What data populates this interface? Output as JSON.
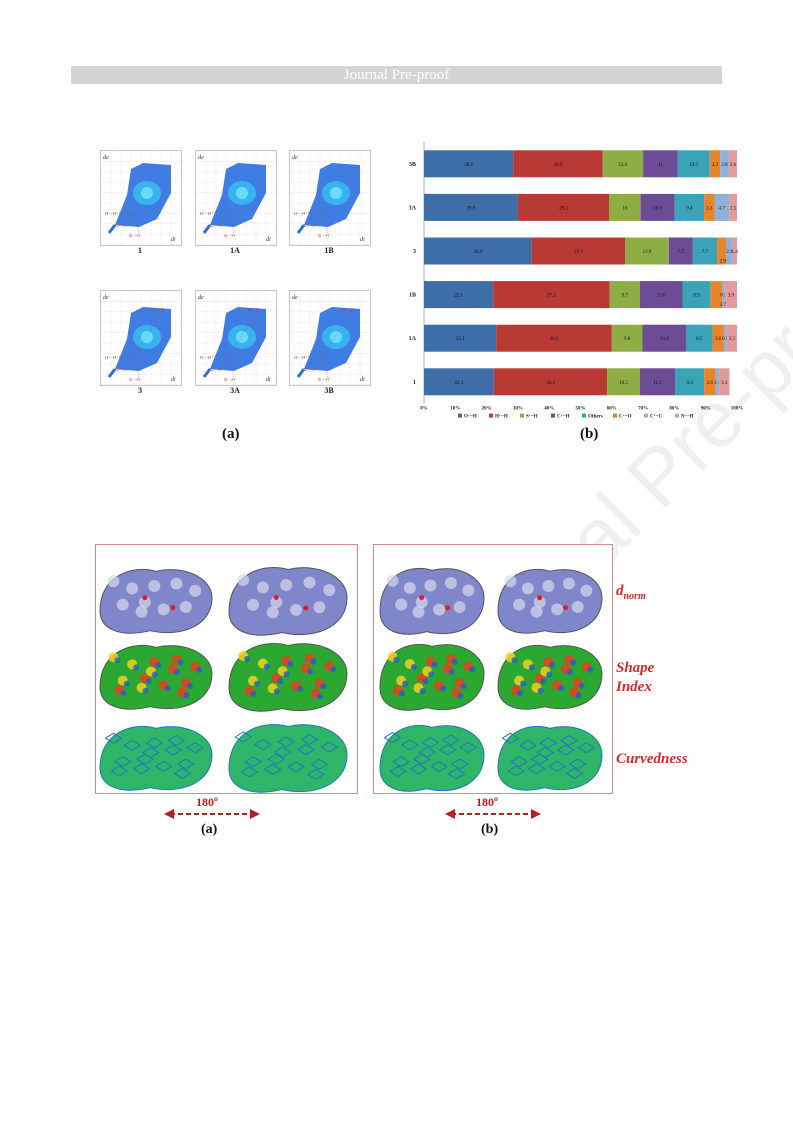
{
  "header": {
    "banner_text": "Journal Pre-proof"
  },
  "watermark": "Journal Pre-proof",
  "figure_top": {
    "fingerprints": [
      {
        "label": "1",
        "contacts": [
          "H···H",
          "O···H",
          "S···H"
        ]
      },
      {
        "label": "1A",
        "contacts": [
          "H···H",
          "O···H",
          "S···H"
        ]
      },
      {
        "label": "1B",
        "contacts": [
          "H···H",
          "O···H",
          "S···H"
        ]
      },
      {
        "label": "3",
        "contacts": [
          "H···H",
          "O···H",
          "S···H",
          "N···H"
        ]
      },
      {
        "label": "3A",
        "contacts": [
          "H···H",
          "O···H",
          "S···H",
          "N···H"
        ]
      },
      {
        "label": "3B",
        "contacts": [
          "H···H",
          "O···H",
          "S···H",
          "N···H"
        ]
      }
    ],
    "axis_x": "di",
    "axis_y": "de",
    "sublabel_a": "(a)",
    "sublabel_b": "(b)"
  },
  "chart_data": {
    "type": "bar",
    "orientation": "horizontal-stacked-percent",
    "categories": [
      "3B",
      "3A",
      "3",
      "1B",
      "1A",
      "1"
    ],
    "xlim": [
      0,
      100
    ],
    "ticks": [
      "0%",
      "10%",
      "20%",
      "30%",
      "40%",
      "50%",
      "60%",
      "70%",
      "80%",
      "90%",
      "100%"
    ],
    "series": [
      {
        "name": "O···H",
        "color": "#3d6ea8",
        "values": [
          28.5,
          29.9,
          34.4,
          22.1,
          23.1,
          22.3
        ]
      },
      {
        "name": "H···H",
        "color": "#b93a35",
        "values": [
          28.6,
          29.3,
          29.9,
          37.2,
          36.9,
          36.2
        ]
      },
      {
        "name": "S···H",
        "color": "#8fad45",
        "values": [
          12.9,
          10,
          13.9,
          9.7,
          9.8,
          10.5
        ]
      },
      {
        "name": "C···H",
        "color": "#6c4c95",
        "values": [
          11,
          10.9,
          7.7,
          13.6,
          13.9,
          11.2
        ]
      },
      {
        "name": "Others",
        "color": "#3aa3b8",
        "values": [
          10.3,
          9.4,
          7.7,
          8.9,
          8.5,
          9.3
        ]
      },
      {
        "name": "C···O",
        "color": "#e8842a",
        "values": [
          3.3,
          3.3,
          2.9,
          3.7,
          3.6,
          3.6
        ]
      },
      {
        "name": "C···C",
        "color": "#8fb0d8",
        "values": [
          2.8,
          4.7,
          2.1,
          0.9,
          0.9,
          1.1
        ]
      },
      {
        "name": "N···H",
        "color": "#e29a9a",
        "values": [
          2.6,
          2.5,
          1.4,
          3.9,
          3.3,
          3.4
        ]
      }
    ],
    "data_labels": [
      [
        "28.5",
        "28.6",
        "12.9",
        "11",
        "10.3",
        "3.3",
        "2.8",
        "2.6"
      ],
      [
        "29.9",
        "29.3",
        "10",
        "10.9",
        "9.4",
        "3.3",
        "4.7",
        "2.5"
      ],
      [
        "34.4",
        "29.9",
        "13.9",
        "7.7",
        "7.7",
        "",
        "2.1",
        "1.4"
      ],
      [
        "22.1",
        "37.2",
        "9.7",
        "13.6",
        "8.9",
        "",
        "0.9",
        "3.9"
      ],
      [
        "23.1",
        "36.9",
        "9.8",
        "13.9",
        "8.5",
        "3.6",
        "0.9",
        "3.3"
      ],
      [
        "22.3",
        "36.2",
        "10.5",
        "11.2",
        "9.3",
        "3.6",
        "1.1",
        "3.4"
      ]
    ],
    "extra_labels": [
      {
        "row": 2,
        "text": "2.9"
      },
      {
        "row": 3,
        "text": "3.7"
      }
    ],
    "legend_placement": "bottom"
  },
  "figure_bottom": {
    "rows": [
      {
        "name": "dnorm",
        "label_main": "d",
        "label_sub": "norm"
      },
      {
        "name": "shape-index",
        "label_main": "Shape",
        "label_line2": "Index"
      },
      {
        "name": "curvedness",
        "label_main": "Curvedness"
      }
    ],
    "rotation_a": "180º",
    "rotation_b": "180º",
    "sublabel_a": "(a)",
    "sublabel_b": "(b)"
  }
}
